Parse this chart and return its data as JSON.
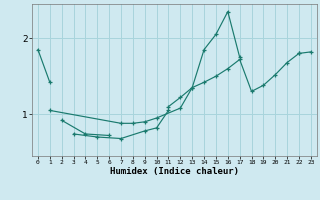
{
  "xlabel": "Humidex (Indice chaleur)",
  "background_color": "#cfe9f0",
  "grid_color": "#a8d4dc",
  "line_color": "#1a7a6e",
  "xlim": [
    -0.5,
    23.5
  ],
  "ylim": [
    0.45,
    2.45
  ],
  "yticks": [
    1,
    2
  ],
  "xticks": [
    0,
    1,
    2,
    3,
    4,
    5,
    6,
    7,
    8,
    9,
    10,
    11,
    12,
    13,
    14,
    15,
    16,
    17,
    18,
    19,
    20,
    21,
    22,
    23
  ],
  "series": [
    {
      "x": [
        0,
        1
      ],
      "y": [
        1.85,
        1.42
      ]
    },
    {
      "x": [
        2,
        4,
        6
      ],
      "y": [
        0.92,
        0.74,
        0.72
      ]
    },
    {
      "x": [
        3,
        5,
        7,
        9,
        10,
        11
      ],
      "y": [
        0.74,
        0.7,
        0.68,
        0.78,
        0.82,
        1.05
      ]
    },
    {
      "x": [
        1,
        7,
        8,
        9,
        10,
        12,
        13,
        14,
        15,
        16,
        17
      ],
      "y": [
        1.05,
        0.88,
        0.88,
        0.9,
        0.95,
        1.08,
        1.35,
        1.85,
        2.05,
        2.35,
        1.75
      ]
    },
    {
      "x": [
        11,
        12,
        13,
        14,
        15,
        16,
        17,
        18,
        19,
        20,
        21,
        22
      ],
      "y": [
        1.1,
        1.22,
        1.35,
        1.42,
        1.5,
        1.6,
        1.72,
        1.3,
        1.38,
        1.52,
        1.68,
        1.8
      ]
    },
    {
      "x": [
        22,
        23
      ],
      "y": [
        1.8,
        1.82
      ]
    }
  ]
}
